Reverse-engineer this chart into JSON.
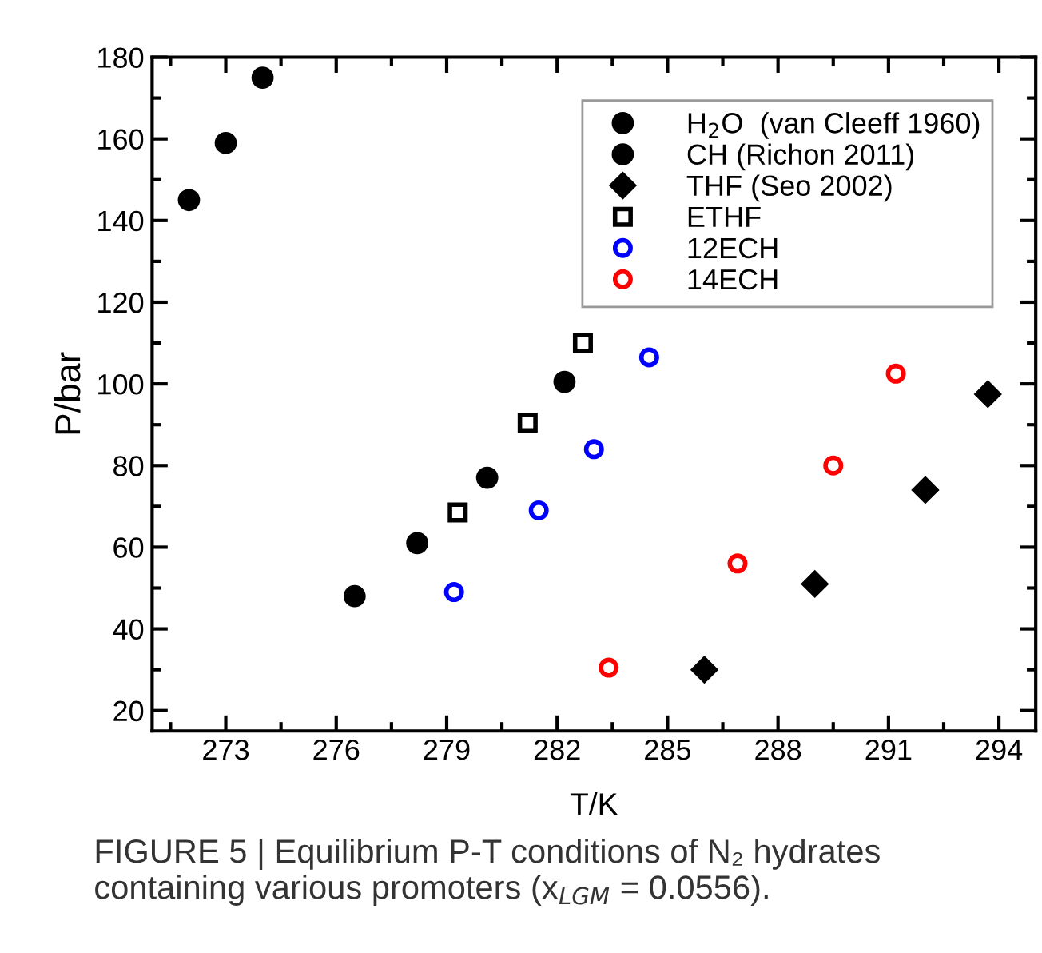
{
  "chart_data": {
    "type": "scatter",
    "xlabel": "T/K",
    "ylabel": "P/bar",
    "xlim": [
      271,
      295
    ],
    "xticks": [
      273,
      276,
      279,
      282,
      285,
      288,
      291,
      294
    ],
    "ylim": [
      15,
      180
    ],
    "yticks": [
      20,
      40,
      60,
      80,
      100,
      120,
      140,
      160,
      180
    ],
    "legend": "top right",
    "grid": false,
    "annotations": [
      "FIGURE 5 | Equilibrium P-T conditions of N₂ hydrates containing various promoters (x$_{LGM}$ = 0.0556)."
    ],
    "series": [
      {
        "name": "H$_{2}$O  (van Cleeff 1960)",
        "color": "#000000",
        "marker": "circle",
        "x": [
          272,
          273,
          274
        ],
        "values": [
          145,
          159,
          175
        ]
      },
      {
        "name": "CH (Richon 2011)",
        "color": "#000000",
        "marker": "circle",
        "x": [
          276.5,
          278.2,
          280.1,
          282.2
        ],
        "values": [
          48,
          61,
          77,
          100.5
        ]
      },
      {
        "name": "THF (Seo 2002)",
        "color": "#000000",
        "marker": "diamond",
        "x": [
          286,
          289,
          292,
          293.7
        ],
        "values": [
          30,
          51,
          74,
          97.5
        ]
      },
      {
        "name": "ETHF",
        "color": "#000000",
        "marker": "square",
        "x": [
          279.3,
          281.2,
          282.7
        ],
        "values": [
          68.5,
          90.5,
          110
        ]
      },
      {
        "name": "12ECH",
        "color": "#0000ff",
        "marker": "circle",
        "x": [
          279.2,
          281.5,
          283,
          284.5
        ],
        "values": [
          49,
          69,
          84,
          106.5
        ]
      },
      {
        "name": "14ECH",
        "color": "#ff0000",
        "marker": "circle",
        "x": [
          283.4,
          286.9,
          289.5,
          291.2
        ],
        "values": [
          30.5,
          56,
          80,
          102.5
        ]
      }
    ]
  }
}
